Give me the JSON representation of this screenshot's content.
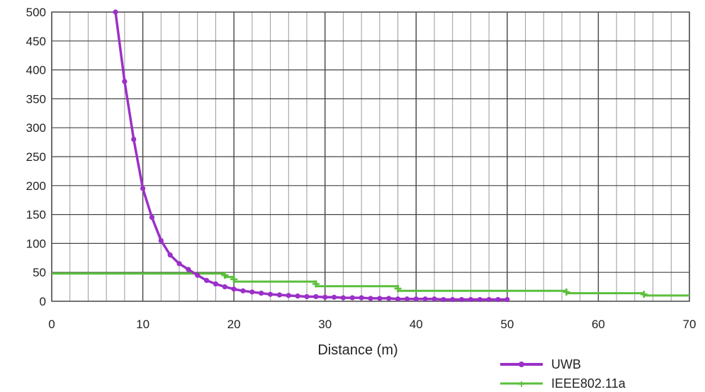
{
  "chart_data": {
    "type": "line",
    "title": "",
    "xlabel": "Distance (m)",
    "ylabel": "",
    "xlim": [
      0,
      70
    ],
    "ylim": [
      0,
      500
    ],
    "xticks": [
      "0",
      "10",
      "20",
      "30",
      "40",
      "50",
      "60",
      "70"
    ],
    "yticks": [
      "0",
      "50",
      "100",
      "150",
      "200",
      "250",
      "300",
      "350",
      "400",
      "450",
      "500"
    ],
    "grid": true,
    "legend_position": "bottom-right",
    "colors": {
      "uwb": "#9b30c8",
      "wifi": "#5bbf3a"
    },
    "series": [
      {
        "name": "UWB",
        "points": [
          [
            7,
            500
          ],
          [
            8,
            380
          ],
          [
            9,
            280
          ],
          [
            10,
            195
          ],
          [
            11,
            145
          ],
          [
            12,
            105
          ],
          [
            13,
            80
          ],
          [
            14,
            65
          ],
          [
            15,
            55
          ],
          [
            16,
            45
          ],
          [
            17,
            36
          ],
          [
            18,
            30
          ],
          [
            19,
            25
          ],
          [
            20,
            21
          ],
          [
            21,
            18
          ],
          [
            22,
            16
          ],
          [
            23,
            14
          ],
          [
            24,
            12
          ],
          [
            25,
            11
          ],
          [
            26,
            10
          ],
          [
            27,
            9
          ],
          [
            28,
            8
          ],
          [
            29,
            8
          ],
          [
            30,
            7
          ],
          [
            31,
            7
          ],
          [
            32,
            6
          ],
          [
            33,
            6
          ],
          [
            34,
            6
          ],
          [
            35,
            5
          ],
          [
            36,
            5
          ],
          [
            37,
            5
          ],
          [
            38,
            4
          ],
          [
            39,
            4
          ],
          [
            40,
            4
          ],
          [
            41,
            4
          ],
          [
            42,
            4
          ],
          [
            43,
            3
          ],
          [
            44,
            3
          ],
          [
            45,
            3
          ],
          [
            46,
            3
          ],
          [
            47,
            3
          ],
          [
            48,
            3
          ],
          [
            49,
            3
          ],
          [
            50,
            3
          ]
        ]
      },
      {
        "name": "IEEE802.11a",
        "points": [
          [
            0,
            48
          ],
          [
            19,
            48
          ],
          [
            19,
            42
          ],
          [
            20,
            42
          ],
          [
            20,
            34
          ],
          [
            29,
            34
          ],
          [
            29,
            26
          ],
          [
            38,
            26
          ],
          [
            38,
            18
          ],
          [
            56.5,
            18
          ],
          [
            56.5,
            14
          ],
          [
            65,
            14
          ],
          [
            65,
            10
          ],
          [
            70,
            10
          ]
        ],
        "markers": [
          [
            19,
            45
          ],
          [
            20,
            38
          ],
          [
            29,
            30
          ],
          [
            38,
            22
          ],
          [
            56.5,
            16
          ],
          [
            65,
            12
          ]
        ]
      }
    ]
  }
}
